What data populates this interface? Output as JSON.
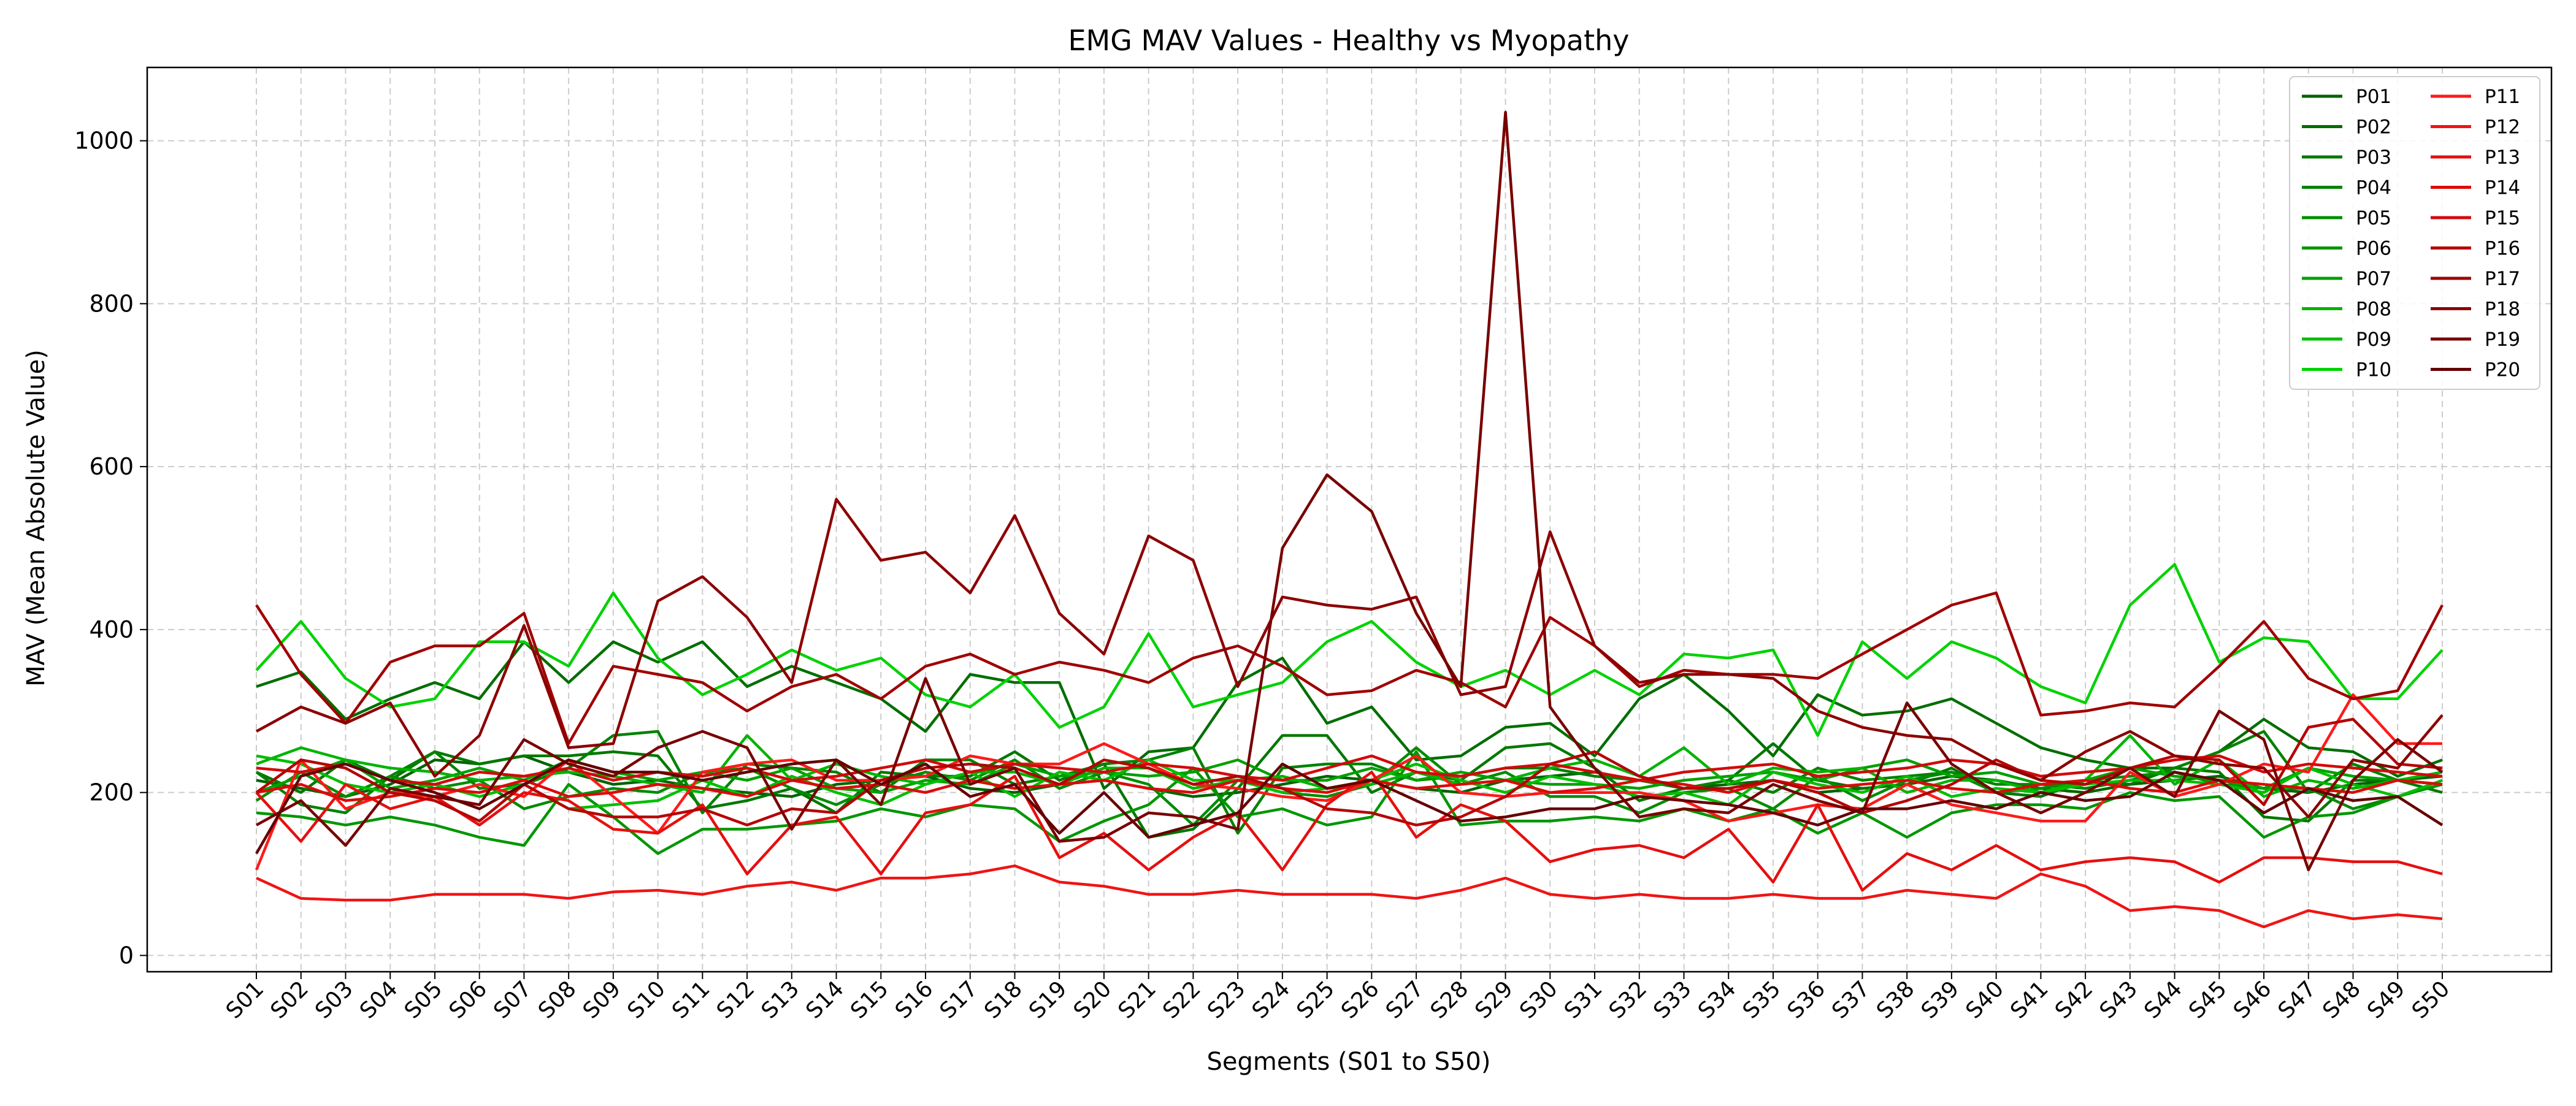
{
  "chart_data": {
    "type": "line",
    "title": "EMG MAV Values - Healthy vs Myopathy",
    "xlabel": "Segments (S01 to S50)",
    "ylabel": "MAV (Mean Absolute Value)",
    "categories": [
      "S01",
      "S02",
      "S03",
      "S04",
      "S05",
      "S06",
      "S07",
      "S08",
      "S09",
      "S10",
      "S11",
      "S12",
      "S13",
      "S14",
      "S15",
      "S16",
      "S17",
      "S18",
      "S19",
      "S20",
      "S21",
      "S22",
      "S23",
      "S24",
      "S25",
      "S26",
      "S27",
      "S28",
      "S29",
      "S30",
      "S31",
      "S32",
      "S33",
      "S34",
      "S35",
      "S36",
      "S37",
      "S38",
      "S39",
      "S40",
      "S41",
      "S42",
      "S43",
      "S44",
      "S45",
      "S46",
      "S47",
      "S48",
      "S49",
      "S50"
    ],
    "ylim": [
      -20,
      1090
    ],
    "yticks": [
      0,
      200,
      400,
      600,
      800,
      1000
    ],
    "grid": true,
    "legend_position": "top-right",
    "legend_columns": 2,
    "series": [
      {
        "name": "P01",
        "color": "#006400",
        "values": [
          215,
          205,
          195,
          210,
          240,
          235,
          245,
          225,
          210,
          215,
          205,
          200,
          195,
          210,
          215,
          220,
          205,
          200,
          210,
          215,
          205,
          195,
          200,
          210,
          220,
          215,
          205,
          200,
          215,
          220,
          225,
          215,
          205,
          210,
          215,
          200,
          205,
          210,
          220,
          215,
          205,
          200,
          210,
          215,
          220,
          205,
          200,
          210,
          215,
          220
        ]
      },
      {
        "name": "P02",
        "color": "#006e00",
        "values": [
          330,
          348,
          290,
          315,
          335,
          315,
          385,
          335,
          385,
          360,
          385,
          330,
          355,
          335,
          315,
          275,
          345,
          335,
          335,
          205,
          250,
          255,
          335,
          365,
          285,
          305,
          240,
          245,
          280,
          285,
          245,
          315,
          345,
          300,
          245,
          320,
          295,
          300,
          315,
          285,
          255,
          240,
          230,
          230,
          250,
          290,
          255,
          250,
          220,
          240
        ]
      },
      {
        "name": "P03",
        "color": "#007800",
        "values": [
          225,
          200,
          240,
          215,
          250,
          235,
          245,
          245,
          250,
          245,
          180,
          190,
          205,
          175,
          225,
          220,
          220,
          250,
          215,
          235,
          145,
          155,
          205,
          270,
          270,
          200,
          225,
          215,
          255,
          260,
          230,
          190,
          205,
          215,
          260,
          215,
          205,
          210,
          230,
          200,
          195,
          215,
          210,
          230,
          225,
          170,
          165,
          215,
          215,
          200
        ]
      },
      {
        "name": "P04",
        "color": "#008200",
        "values": [
          225,
          185,
          175,
          220,
          250,
          205,
          210,
          230,
          270,
          275,
          175,
          235,
          230,
          225,
          200,
          240,
          240,
          210,
          220,
          235,
          240,
          255,
          150,
          230,
          235,
          235,
          215,
          220,
          230,
          230,
          220,
          215,
          205,
          215,
          200,
          230,
          215,
          220,
          225,
          210,
          210,
          205,
          215,
          230,
          250,
          275,
          200,
          235,
          215,
          210
        ]
      },
      {
        "name": "P05",
        "color": "#008c00",
        "values": [
          190,
          225,
          195,
          220,
          205,
          215,
          180,
          195,
          205,
          200,
          225,
          230,
          205,
          185,
          210,
          225,
          215,
          240,
          205,
          225,
          210,
          160,
          215,
          200,
          195,
          210,
          255,
          210,
          225,
          195,
          195,
          175,
          200,
          205,
          180,
          220,
          190,
          215,
          225,
          200,
          205,
          215,
          220,
          225,
          210,
          205,
          205,
          180,
          195,
          210
        ]
      },
      {
        "name": "P06",
        "color": "#009600",
        "values": [
          175,
          170,
          160,
          170,
          160,
          145,
          135,
          210,
          170,
          125,
          155,
          155,
          160,
          165,
          180,
          170,
          185,
          180,
          140,
          165,
          185,
          230,
          170,
          180,
          160,
          170,
          250,
          160,
          165,
          165,
          170,
          165,
          180,
          165,
          180,
          150,
          175,
          145,
          175,
          185,
          185,
          180,
          200,
          190,
          195,
          145,
          170,
          175,
          195,
          210
        ]
      },
      {
        "name": "P07",
        "color": "#00a000",
        "values": [
          200,
          220,
          240,
          205,
          215,
          230,
          215,
          240,
          225,
          215,
          225,
          215,
          230,
          205,
          200,
          215,
          210,
          235,
          220,
          225,
          220,
          225,
          240,
          215,
          215,
          230,
          215,
          225,
          215,
          210,
          210,
          205,
          215,
          220,
          225,
          215,
          230,
          240,
          220,
          225,
          210,
          215,
          230,
          220,
          215,
          205,
          230,
          220,
          215,
          210
        ]
      },
      {
        "name": "P08",
        "color": "#00b400",
        "values": [
          235,
          255,
          240,
          230,
          225,
          215,
          220,
          225,
          220,
          210,
          200,
          270,
          215,
          235,
          220,
          210,
          225,
          225,
          210,
          230,
          230,
          205,
          215,
          220,
          205,
          210,
          225,
          210,
          215,
          230,
          240,
          220,
          255,
          210,
          230,
          225,
          230,
          200,
          215,
          215,
          200,
          215,
          270,
          210,
          240,
          195,
          215,
          205,
          215,
          225
        ]
      },
      {
        "name": "P09",
        "color": "#00be00",
        "values": [
          245,
          235,
          210,
          200,
          210,
          195,
          210,
          180,
          185,
          190,
          215,
          195,
          220,
          200,
          185,
          210,
          225,
          195,
          225,
          215,
          240,
          215,
          215,
          200,
          205,
          215,
          235,
          215,
          200,
          220,
          210,
          195,
          200,
          185,
          225,
          210,
          200,
          220,
          195,
          205,
          200,
          210,
          215,
          215,
          210,
          200,
          230,
          210,
          195,
          215
        ]
      },
      {
        "name": "P10",
        "color": "#00d200",
        "values": [
          350,
          410,
          340,
          305,
          315,
          385,
          385,
          355,
          445,
          365,
          320,
          345,
          375,
          350,
          365,
          320,
          305,
          345,
          280,
          305,
          395,
          305,
          320,
          335,
          385,
          410,
          360,
          330,
          350,
          320,
          350,
          320,
          370,
          365,
          375,
          270,
          385,
          340,
          385,
          365,
          330,
          310,
          430,
          480,
          360,
          390,
          385,
          315,
          315,
          375
        ]
      },
      {
        "name": "P11",
        "color": "#ff1a1a",
        "values": [
          105,
          240,
          180,
          200,
          195,
          210,
          195,
          240,
          195,
          150,
          225,
          235,
          240,
          215,
          215,
          220,
          245,
          235,
          235,
          260,
          235,
          210,
          205,
          195,
          190,
          215,
          245,
          200,
          195,
          200,
          200,
          200,
          190,
          165,
          175,
          185,
          180,
          210,
          185,
          175,
          165,
          165,
          225,
          195,
          210,
          235,
          225,
          320,
          260,
          260
        ]
      },
      {
        "name": "P12",
        "color": "#f01414",
        "values": [
          95,
          70,
          68,
          68,
          75,
          75,
          75,
          70,
          78,
          80,
          75,
          85,
          90,
          80,
          95,
          95,
          100,
          110,
          90,
          85,
          75,
          75,
          80,
          75,
          75,
          75,
          70,
          80,
          95,
          75,
          70,
          75,
          70,
          70,
          75,
          70,
          70,
          80,
          75,
          70,
          100,
          85,
          55,
          60,
          55,
          35,
          55,
          45,
          50,
          45
        ]
      },
      {
        "name": "P13",
        "color": "#e60f0f",
        "values": [
          200,
          140,
          210,
          180,
          195,
          160,
          200,
          190,
          155,
          150,
          185,
          100,
          160,
          170,
          100,
          175,
          185,
          220,
          120,
          150,
          105,
          145,
          175,
          105,
          185,
          225,
          145,
          185,
          165,
          115,
          130,
          135,
          120,
          155,
          90,
          185,
          80,
          125,
          105,
          135,
          105,
          115,
          120,
          115,
          90,
          120,
          120,
          115,
          115,
          100
        ]
      },
      {
        "name": "P14",
        "color": "#dc0a0a",
        "values": [
          200,
          210,
          190,
          195,
          205,
          200,
          215,
          195,
          200,
          210,
          205,
          195,
          215,
          205,
          210,
          200,
          215,
          205,
          210,
          215,
          205,
          200,
          215,
          205,
          200,
          215,
          205,
          210,
          215,
          200,
          205,
          215,
          210,
          200,
          215,
          205,
          210,
          215,
          205,
          200,
          210,
          215,
          205,
          200,
          215,
          210,
          205,
          200,
          215,
          210
        ]
      },
      {
        "name": "P15",
        "color": "#d20a0a",
        "values": [
          230,
          225,
          235,
          215,
          210,
          225,
          220,
          230,
          215,
          225,
          220,
          230,
          215,
          220,
          230,
          240,
          225,
          235,
          230,
          225,
          235,
          230,
          220,
          215,
          230,
          245,
          225,
          220,
          230,
          235,
          225,
          215,
          225,
          230,
          235,
          220,
          225,
          230,
          240,
          235,
          220,
          225,
          230,
          240,
          245,
          225,
          235,
          230,
          225,
          220
        ]
      },
      {
        "name": "P16",
        "color": "#b40505",
        "values": [
          200,
          240,
          230,
          200,
          190,
          165,
          210,
          180,
          170,
          170,
          180,
          160,
          180,
          175,
          215,
          230,
          235,
          230,
          210,
          240,
          230,
          210,
          220,
          205,
          180,
          175,
          160,
          170,
          195,
          235,
          250,
          220,
          205,
          205,
          215,
          200,
          175,
          190,
          210,
          240,
          215,
          210,
          230,
          245,
          240,
          185,
          280,
          290,
          235,
          230
        ]
      },
      {
        "name": "P17",
        "color": "#a00000",
        "values": [
          430,
          345,
          285,
          360,
          380,
          380,
          420,
          260,
          355,
          345,
          335,
          300,
          330,
          345,
          315,
          355,
          370,
          345,
          360,
          350,
          335,
          365,
          380,
          355,
          320,
          325,
          350,
          335,
          305,
          415,
          380,
          330,
          350,
          345,
          345,
          340,
          370,
          400,
          430,
          445,
          295,
          300,
          310,
          305,
          355,
          410,
          340,
          315,
          325,
          430
        ]
      },
      {
        "name": "P18",
        "color": "#8c0000",
        "values": [
          275,
          305,
          285,
          310,
          220,
          270,
          405,
          255,
          260,
          435,
          465,
          415,
          335,
          560,
          485,
          495,
          445,
          540,
          420,
          370,
          515,
          485,
          330,
          440,
          430,
          425,
          440,
          320,
          330,
          520,
          380,
          335,
          345,
          345,
          340,
          300,
          280,
          270,
          265,
          235,
          215,
          250,
          275,
          245,
          235,
          230,
          170,
          240,
          230,
          295
        ]
      },
      {
        "name": "P19",
        "color": "#780000",
        "values": [
          160,
          190,
          135,
          205,
          195,
          185,
          265,
          235,
          220,
          255,
          275,
          255,
          155,
          240,
          185,
          340,
          210,
          230,
          140,
          145,
          175,
          170,
          155,
          500,
          590,
          545,
          420,
          330,
          1035,
          305,
          230,
          170,
          180,
          175,
          210,
          190,
          175,
          310,
          235,
          200,
          175,
          200,
          230,
          195,
          300,
          265,
          105,
          215,
          265,
          225
        ]
      },
      {
        "name": "P20",
        "color": "#640000",
        "values": [
          125,
          220,
          235,
          215,
          200,
          180,
          210,
          240,
          225,
          225,
          215,
          225,
          235,
          240,
          210,
          235,
          195,
          210,
          150,
          200,
          145,
          160,
          175,
          235,
          205,
          215,
          190,
          165,
          170,
          180,
          180,
          195,
          190,
          185,
          175,
          160,
          180,
          180,
          190,
          180,
          200,
          190,
          195,
          225,
          215,
          175,
          205,
          190,
          195,
          160
        ]
      }
    ]
  }
}
